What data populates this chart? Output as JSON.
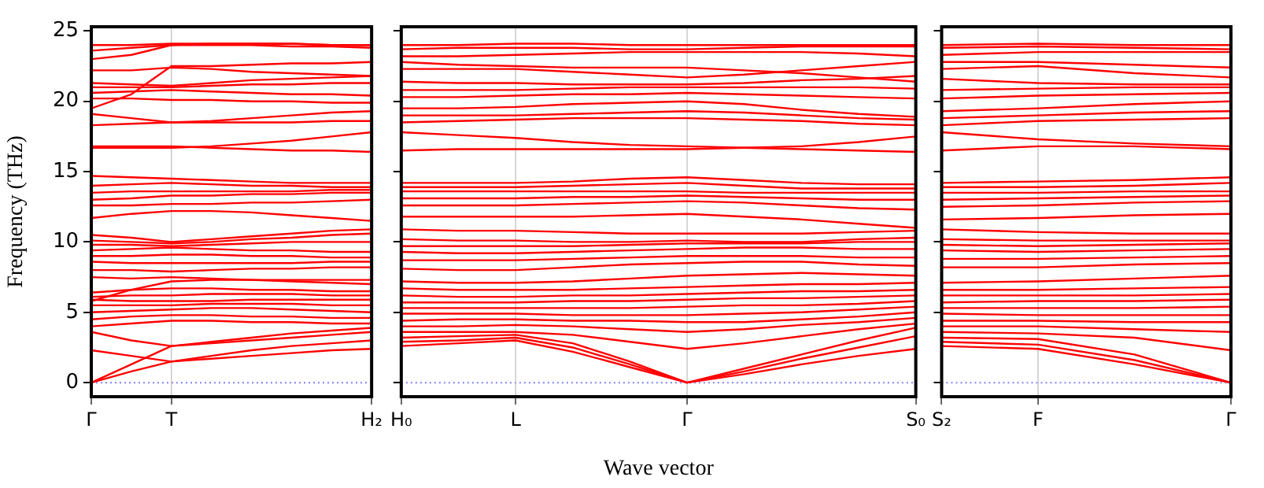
{
  "chart_data": [
    {
      "type": "line",
      "ylabel": "Frequency (THz)",
      "categories": [
        "Γ",
        null,
        "T",
        null,
        null,
        null,
        null,
        "H₂"
      ],
      "ylim": [
        -1,
        25.3
      ],
      "yticks": [
        0,
        5,
        10,
        15,
        20,
        25
      ],
      "legend": false,
      "ref_lines": [
        {
          "axis": "y",
          "value": 0,
          "color": "#8080ff",
          "line_style": "dotted"
        },
        {
          "axis": "x",
          "value": "T",
          "color": "#bbbbbb",
          "line_style": "solid"
        }
      ],
      "series": [
        {
          "color": "#ff0000",
          "values": [
            0,
            0.8,
            1.5,
            1.7,
            1.9,
            2.1,
            2.3,
            2.4
          ]
        },
        {
          "color": "#ff0000",
          "values": [
            0,
            1.3,
            2.6,
            2.8,
            3.0,
            3.2,
            3.4,
            3.6
          ]
        },
        {
          "color": "#ff0000",
          "values": [
            2.3,
            1.9,
            1.5,
            1.9,
            2.3,
            2.6,
            2.8,
            3.0
          ]
        },
        {
          "color": "#ff0000",
          "values": [
            3.6,
            3.0,
            2.6,
            2.9,
            3.2,
            3.5,
            3.7,
            3.9
          ]
        },
        {
          "color": "#ff0000",
          "values": [
            4.0,
            4.2,
            4.4,
            4.4,
            4.3,
            4.3,
            4.2,
            4.2
          ]
        },
        {
          "color": "#ff0000",
          "values": [
            4.5,
            4.7,
            4.8,
            4.8,
            4.7,
            4.7,
            4.6,
            4.6
          ]
        },
        {
          "color": "#ff0000",
          "values": [
            5.0,
            5.1,
            5.2,
            5.3,
            5.3,
            5.2,
            5.1,
            5.0
          ]
        },
        {
          "color": "#ff0000",
          "values": [
            5.5,
            5.5,
            5.5,
            5.6,
            5.6,
            5.6,
            5.5,
            5.5
          ]
        },
        {
          "color": "#ff0000",
          "values": [
            5.9,
            5.8,
            5.8,
            5.8,
            5.9,
            5.9,
            5.9,
            5.9
          ]
        },
        {
          "color": "#ff0000",
          "values": [
            6.1,
            6.2,
            6.2,
            6.3,
            6.3,
            6.3,
            6.2,
            6.2
          ]
        },
        {
          "color": "#ff0000",
          "values": [
            6.4,
            6.6,
            6.7,
            6.7,
            6.6,
            6.6,
            6.5,
            6.5
          ]
        },
        {
          "color": "#ff0000",
          "values": [
            5.8,
            6.6,
            7.2,
            7.3,
            7.3,
            7.3,
            7.3,
            7.3
          ]
        },
        {
          "color": "#ff0000",
          "values": [
            7.5,
            7.4,
            7.5,
            7.4,
            7.3,
            7.2,
            7.1,
            7.0
          ]
        },
        {
          "color": "#ff0000",
          "values": [
            8.0,
            8.0,
            7.9,
            8.0,
            8.1,
            8.1,
            8.2,
            8.2
          ]
        },
        {
          "color": "#ff0000",
          "values": [
            8.6,
            8.5,
            8.5,
            8.5,
            8.5,
            8.5,
            8.6,
            8.6
          ]
        },
        {
          "color": "#ff0000",
          "values": [
            9.0,
            9.0,
            9.1,
            9.1,
            9.0,
            9.0,
            8.9,
            8.9
          ]
        },
        {
          "color": "#ff0000",
          "values": [
            9.4,
            9.5,
            9.6,
            9.5,
            9.4,
            9.4,
            9.3,
            9.3
          ]
        },
        {
          "color": "#ff0000",
          "values": [
            9.8,
            9.8,
            9.7,
            9.8,
            9.9,
            10.0,
            10.0,
            10.0
          ]
        },
        {
          "color": "#ff0000",
          "values": [
            10.1,
            10.0,
            9.9,
            10.0,
            10.2,
            10.3,
            10.5,
            10.6
          ]
        },
        {
          "color": "#ff0000",
          "values": [
            10.5,
            10.3,
            10.0,
            10.2,
            10.4,
            10.6,
            10.8,
            10.9
          ]
        },
        {
          "color": "#ff0000",
          "values": [
            11.7,
            12.0,
            12.2,
            12.2,
            12.1,
            11.9,
            11.7,
            11.5
          ]
        },
        {
          "color": "#ff0000",
          "values": [
            12.6,
            12.6,
            12.7,
            12.7,
            12.8,
            12.8,
            12.9,
            13.0
          ]
        },
        {
          "color": "#ff0000",
          "values": [
            13.0,
            13.1,
            13.3,
            13.3,
            13.4,
            13.4,
            13.5,
            13.5
          ]
        },
        {
          "color": "#ff0000",
          "values": [
            13.5,
            13.6,
            13.6,
            13.6,
            13.6,
            13.6,
            13.7,
            13.7
          ]
        },
        {
          "color": "#ff0000",
          "values": [
            14.0,
            14.1,
            14.2,
            14.1,
            14.0,
            14.0,
            13.9,
            13.9
          ]
        },
        {
          "color": "#ff0000",
          "values": [
            14.7,
            14.6,
            14.5,
            14.4,
            14.3,
            14.2,
            14.2,
            14.2
          ]
        },
        {
          "color": "#ff0000",
          "values": [
            16.7,
            16.7,
            16.7,
            16.8,
            17.0,
            17.2,
            17.5,
            17.8
          ]
        },
        {
          "color": "#ff0000",
          "values": [
            16.8,
            16.8,
            16.8,
            16.7,
            16.6,
            16.5,
            16.5,
            16.4
          ]
        },
        {
          "color": "#ff0000",
          "values": [
            18.3,
            18.4,
            18.5,
            18.5,
            18.5,
            18.5,
            18.6,
            18.6
          ]
        },
        {
          "color": "#ff0000",
          "values": [
            19.1,
            18.8,
            18.5,
            18.6,
            18.8,
            19.0,
            19.2,
            19.3
          ]
        },
        {
          "color": "#ff0000",
          "values": [
            19.5,
            20.5,
            22.5,
            22.5,
            22.6,
            22.7,
            22.7,
            22.8
          ]
        },
        {
          "color": "#ff0000",
          "values": [
            20.2,
            20.2,
            20.1,
            20.1,
            20.0,
            20.0,
            19.9,
            19.9
          ]
        },
        {
          "color": "#ff0000",
          "values": [
            20.6,
            20.7,
            20.8,
            20.7,
            20.6,
            20.5,
            20.5,
            20.4
          ]
        },
        {
          "color": "#ff0000",
          "values": [
            21.0,
            21.0,
            21.0,
            21.1,
            21.2,
            21.2,
            21.3,
            21.3
          ]
        },
        {
          "color": "#ff0000",
          "values": [
            21.3,
            21.2,
            21.1,
            21.3,
            21.5,
            21.6,
            21.7,
            21.8
          ]
        },
        {
          "color": "#ff0000",
          "values": [
            22.2,
            22.2,
            22.4,
            22.3,
            22.1,
            22.0,
            21.9,
            21.8
          ]
        },
        {
          "color": "#ff0000",
          "values": [
            23.0,
            23.3,
            24.0,
            24.0,
            24.0,
            23.9,
            23.9,
            23.8
          ]
        },
        {
          "color": "#ff0000",
          "values": [
            23.6,
            23.8,
            24.0,
            24.1,
            24.1,
            24.1,
            24.0,
            24.0
          ]
        },
        {
          "color": "#ff0000",
          "values": [
            24.0,
            24.0,
            24.1,
            24.1,
            24.1,
            24.1,
            24.0,
            24.0
          ]
        }
      ]
    },
    {
      "type": "line",
      "xlabel": "Wave vector",
      "categories": [
        "H₀",
        null,
        "L",
        null,
        null,
        "Γ",
        null,
        null,
        null,
        "S₀"
      ],
      "ylim": [
        -1,
        25.3
      ],
      "yticks": [
        {
          "value": 0,
          "label": null
        },
        {
          "value": 5,
          "label": null
        },
        {
          "value": 10,
          "label": null
        },
        {
          "value": 15,
          "label": null
        },
        {
          "value": 20,
          "label": null
        },
        {
          "value": 25,
          "label": null
        }
      ],
      "tick_labels": "x",
      "legend": false,
      "ref_lines": [
        {
          "axis": "y",
          "value": 0,
          "color": "#8080ff",
          "line_style": "dotted"
        },
        {
          "axis": "x",
          "value": "L",
          "color": "#bbbbbb",
          "line_style": "solid"
        },
        {
          "axis": "x",
          "value": "Γ",
          "color": "#bbbbbb",
          "line_style": "solid"
        }
      ],
      "series": [
        {
          "color": "#ff0000",
          "values": [
            2.6,
            2.8,
            3.0,
            2.2,
            1.1,
            0,
            0.6,
            1.3,
            1.9,
            2.4
          ]
        },
        {
          "color": "#ff0000",
          "values": [
            2.9,
            3.0,
            3.2,
            2.5,
            1.3,
            0,
            0.8,
            1.7,
            2.5,
            3.3
          ]
        },
        {
          "color": "#ff0000",
          "values": [
            3.2,
            3.3,
            3.4,
            2.8,
            1.5,
            0,
            1.0,
            2.0,
            3.0,
            3.9
          ]
        },
        {
          "color": "#ff0000",
          "values": [
            3.6,
            3.6,
            3.6,
            3.4,
            2.9,
            2.4,
            2.8,
            3.3,
            3.8,
            4.2
          ]
        },
        {
          "color": "#ff0000",
          "values": [
            4.0,
            4.0,
            4.1,
            4.0,
            3.8,
            3.6,
            3.8,
            4.1,
            4.3,
            4.6
          ]
        },
        {
          "color": "#ff0000",
          "values": [
            4.4,
            4.5,
            4.5,
            4.4,
            4.4,
            4.3,
            4.3,
            4.5,
            4.7,
            5.0
          ]
        },
        {
          "color": "#ff0000",
          "values": [
            4.9,
            4.9,
            4.9,
            4.8,
            4.8,
            4.8,
            4.9,
            5.0,
            5.2,
            5.4
          ]
        },
        {
          "color": "#ff0000",
          "values": [
            5.3,
            5.3,
            5.3,
            5.3,
            5.3,
            5.4,
            5.5,
            5.5,
            5.6,
            5.8
          ]
        },
        {
          "color": "#ff0000",
          "values": [
            5.7,
            5.7,
            5.7,
            5.8,
            5.8,
            5.9,
            6.0,
            6.0,
            6.1,
            6.2
          ]
        },
        {
          "color": "#ff0000",
          "values": [
            6.2,
            6.1,
            6.1,
            6.2,
            6.2,
            6.3,
            6.4,
            6.5,
            6.5,
            6.6
          ]
        },
        {
          "color": "#ff0000",
          "values": [
            6.7,
            6.6,
            6.6,
            6.6,
            6.7,
            6.8,
            6.9,
            7.0,
            7.0,
            7.1
          ]
        },
        {
          "color": "#ff0000",
          "values": [
            7.2,
            7.1,
            7.1,
            7.2,
            7.4,
            7.6,
            7.7,
            7.8,
            7.7,
            7.6
          ]
        },
        {
          "color": "#ff0000",
          "values": [
            8.1,
            8.0,
            8.0,
            8.2,
            8.4,
            8.5,
            8.6,
            8.6,
            8.4,
            8.3
          ]
        },
        {
          "color": "#ff0000",
          "values": [
            8.7,
            8.7,
            8.7,
            8.8,
            8.9,
            9.0,
            9.0,
            9.0,
            8.9,
            8.9
          ]
        },
        {
          "color": "#ff0000",
          "values": [
            9.3,
            9.2,
            9.2,
            9.3,
            9.4,
            9.5,
            9.6,
            9.6,
            9.5,
            9.5
          ]
        },
        {
          "color": "#ff0000",
          "values": [
            9.7,
            9.7,
            9.7,
            9.7,
            9.8,
            9.9,
            9.9,
            9.9,
            10.0,
            10.0
          ]
        },
        {
          "color": "#ff0000",
          "values": [
            10.2,
            10.1,
            10.1,
            10.0,
            10.0,
            10.1,
            10.0,
            10.0,
            10.2,
            10.3
          ]
        },
        {
          "color": "#ff0000",
          "values": [
            10.9,
            10.8,
            10.8,
            10.7,
            10.6,
            10.6,
            10.6,
            10.6,
            10.7,
            10.8
          ]
        },
        {
          "color": "#ff0000",
          "values": [
            11.8,
            11.8,
            11.8,
            11.8,
            11.9,
            12.0,
            11.8,
            11.6,
            11.3,
            11.0
          ]
        },
        {
          "color": "#ff0000",
          "values": [
            12.6,
            12.6,
            12.6,
            12.7,
            12.8,
            12.9,
            12.8,
            12.6,
            12.4,
            12.3
          ]
        },
        {
          "color": "#ff0000",
          "values": [
            13.1,
            13.1,
            13.1,
            13.2,
            13.2,
            13.3,
            13.2,
            13.1,
            13.0,
            13.0
          ]
        },
        {
          "color": "#ff0000",
          "values": [
            13.6,
            13.6,
            13.6,
            13.6,
            13.6,
            13.6,
            13.5,
            13.5,
            13.5,
            13.5
          ]
        },
        {
          "color": "#ff0000",
          "values": [
            13.9,
            13.9,
            13.9,
            14.0,
            14.1,
            14.2,
            14.0,
            13.8,
            13.8,
            13.8
          ]
        },
        {
          "color": "#ff0000",
          "values": [
            14.2,
            14.2,
            14.2,
            14.3,
            14.5,
            14.6,
            14.4,
            14.2,
            14.1,
            14.1
          ]
        },
        {
          "color": "#ff0000",
          "values": [
            16.5,
            16.6,
            16.6,
            16.6,
            16.6,
            16.6,
            16.7,
            16.8,
            17.1,
            17.5
          ]
        },
        {
          "color": "#ff0000",
          "values": [
            17.8,
            17.6,
            17.4,
            17.1,
            16.9,
            16.8,
            16.7,
            16.6,
            16.5,
            16.4
          ]
        },
        {
          "color": "#ff0000",
          "values": [
            18.5,
            18.6,
            18.7,
            18.8,
            18.8,
            18.8,
            18.7,
            18.6,
            18.4,
            18.3
          ]
        },
        {
          "color": "#ff0000",
          "values": [
            19.0,
            19.0,
            19.0,
            19.1,
            19.2,
            19.3,
            19.2,
            19.0,
            18.8,
            18.7
          ]
        },
        {
          "color": "#ff0000",
          "values": [
            19.5,
            19.5,
            19.6,
            19.8,
            19.9,
            20.0,
            19.8,
            19.4,
            19.1,
            18.9
          ]
        },
        {
          "color": "#ff0000",
          "values": [
            20.3,
            20.3,
            20.4,
            20.5,
            20.5,
            20.6,
            20.5,
            20.4,
            20.3,
            20.2
          ]
        },
        {
          "color": "#ff0000",
          "values": [
            20.8,
            20.8,
            20.8,
            20.9,
            21.0,
            21.0,
            21.0,
            21.0,
            21.0,
            20.9
          ]
        },
        {
          "color": "#ff0000",
          "values": [
            21.4,
            21.3,
            21.3,
            21.2,
            21.2,
            21.2,
            21.3,
            21.5,
            21.6,
            21.8
          ]
        },
        {
          "color": "#ff0000",
          "values": [
            22.3,
            22.3,
            22.3,
            22.1,
            21.9,
            21.7,
            21.9,
            22.2,
            22.5,
            22.8
          ]
        },
        {
          "color": "#ff0000",
          "values": [
            22.8,
            22.6,
            22.5,
            22.4,
            22.4,
            22.4,
            22.2,
            22.0,
            21.7,
            21.4
          ]
        },
        {
          "color": "#ff0000",
          "values": [
            23.2,
            23.2,
            23.3,
            23.4,
            23.5,
            23.5,
            23.5,
            23.5,
            23.4,
            23.2
          ]
        },
        {
          "color": "#ff0000",
          "values": [
            23.7,
            23.8,
            23.8,
            23.8,
            23.7,
            23.7,
            23.8,
            23.9,
            23.9,
            23.9
          ]
        },
        {
          "color": "#ff0000",
          "values": [
            24.0,
            24.0,
            24.1,
            24.1,
            24.0,
            24.0,
            24.0,
            24.0,
            24.0,
            24.0
          ]
        }
      ]
    },
    {
      "type": "line",
      "categories": [
        "S₂",
        "F",
        null,
        "Γ"
      ],
      "ylim": [
        -1,
        25.3
      ],
      "yticks": [
        {
          "value": 0,
          "label": null
        },
        {
          "value": 5,
          "label": null
        },
        {
          "value": 10,
          "label": null
        },
        {
          "value": 15,
          "label": null
        },
        {
          "value": 20,
          "label": null
        },
        {
          "value": 25,
          "label": null
        }
      ],
      "tick_labels": "x",
      "legend": false,
      "ref_lines": [
        {
          "axis": "y",
          "value": 0,
          "color": "#8080ff",
          "line_style": "dotted"
        },
        {
          "axis": "x",
          "value": "F",
          "color": "#bbbbbb",
          "line_style": "solid"
        }
      ],
      "series": [
        {
          "color": "#ff0000",
          "values": [
            2.6,
            2.4,
            1.3,
            0
          ]
        },
        {
          "color": "#ff0000",
          "values": [
            2.9,
            2.7,
            1.6,
            0
          ]
        },
        {
          "color": "#ff0000",
          "values": [
            3.2,
            3.1,
            2.0,
            0
          ]
        },
        {
          "color": "#ff0000",
          "values": [
            3.6,
            3.5,
            3.2,
            2.3
          ]
        },
        {
          "color": "#ff0000",
          "values": [
            4.0,
            4.0,
            3.8,
            3.6
          ]
        },
        {
          "color": "#ff0000",
          "values": [
            4.4,
            4.4,
            4.3,
            4.3
          ]
        },
        {
          "color": "#ff0000",
          "values": [
            4.9,
            4.8,
            4.8,
            4.8
          ]
        },
        {
          "color": "#ff0000",
          "values": [
            5.3,
            5.3,
            5.3,
            5.4
          ]
        },
        {
          "color": "#ff0000",
          "values": [
            5.7,
            5.8,
            5.8,
            5.9
          ]
        },
        {
          "color": "#ff0000",
          "values": [
            6.2,
            6.2,
            6.2,
            6.3
          ]
        },
        {
          "color": "#ff0000",
          "values": [
            6.6,
            6.6,
            6.7,
            6.8
          ]
        },
        {
          "color": "#ff0000",
          "values": [
            7.1,
            7.2,
            7.4,
            7.6
          ]
        },
        {
          "color": "#ff0000",
          "values": [
            8.2,
            8.2,
            8.4,
            8.5
          ]
        },
        {
          "color": "#ff0000",
          "values": [
            8.8,
            8.8,
            8.9,
            9.0
          ]
        },
        {
          "color": "#ff0000",
          "values": [
            9.4,
            9.3,
            9.4,
            9.5
          ]
        },
        {
          "color": "#ff0000",
          "values": [
            9.8,
            9.7,
            9.8,
            9.9
          ]
        },
        {
          "color": "#ff0000",
          "values": [
            10.2,
            10.1,
            10.1,
            10.1
          ]
        },
        {
          "color": "#ff0000",
          "values": [
            10.9,
            10.7,
            10.6,
            10.6
          ]
        },
        {
          "color": "#ff0000",
          "values": [
            11.6,
            11.7,
            11.9,
            12.0
          ]
        },
        {
          "color": "#ff0000",
          "values": [
            12.5,
            12.6,
            12.8,
            12.9
          ]
        },
        {
          "color": "#ff0000",
          "values": [
            13.0,
            13.1,
            13.2,
            13.3
          ]
        },
        {
          "color": "#ff0000",
          "values": [
            13.5,
            13.5,
            13.6,
            13.6
          ]
        },
        {
          "color": "#ff0000",
          "values": [
            13.9,
            13.9,
            14.0,
            14.2
          ]
        },
        {
          "color": "#ff0000",
          "values": [
            14.2,
            14.3,
            14.4,
            14.6
          ]
        },
        {
          "color": "#ff0000",
          "values": [
            16.5,
            16.8,
            16.8,
            16.6
          ]
        },
        {
          "color": "#ff0000",
          "values": [
            17.8,
            17.3,
            17.0,
            16.8
          ]
        },
        {
          "color": "#ff0000",
          "values": [
            18.3,
            18.6,
            18.7,
            18.8
          ]
        },
        {
          "color": "#ff0000",
          "values": [
            18.8,
            19.0,
            19.2,
            19.3
          ]
        },
        {
          "color": "#ff0000",
          "values": [
            19.3,
            19.5,
            19.8,
            20.0
          ]
        },
        {
          "color": "#ff0000",
          "values": [
            20.2,
            20.4,
            20.5,
            20.6
          ]
        },
        {
          "color": "#ff0000",
          "values": [
            20.8,
            20.9,
            21.0,
            21.0
          ]
        },
        {
          "color": "#ff0000",
          "values": [
            21.6,
            21.3,
            21.2,
            21.2
          ]
        },
        {
          "color": "#ff0000",
          "values": [
            22.3,
            22.5,
            22.0,
            21.7
          ]
        },
        {
          "color": "#ff0000",
          "values": [
            22.8,
            22.8,
            22.6,
            22.4
          ]
        },
        {
          "color": "#ff0000",
          "values": [
            23.3,
            23.5,
            23.5,
            23.5
          ]
        },
        {
          "color": "#ff0000",
          "values": [
            23.8,
            23.9,
            23.8,
            23.7
          ]
        },
        {
          "color": "#ff0000",
          "values": [
            24.0,
            24.1,
            24.0,
            24.0
          ]
        }
      ]
    }
  ]
}
